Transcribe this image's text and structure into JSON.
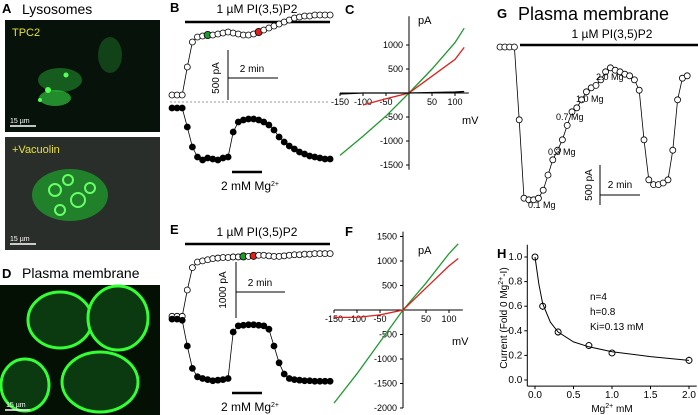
{
  "figure": {
    "A": {
      "label": "A",
      "title": "Lysosomes",
      "top": {
        "caption": "TPC2",
        "scale": "15 µm"
      },
      "bottom": {
        "caption": "+Vacuolin",
        "scale": "15 µm"
      }
    },
    "D": {
      "label": "D",
      "title": "Plasma membrane",
      "scale": "15 µm"
    }
  },
  "chart_data": [
    {
      "type": "trace",
      "label": "B",
      "title": "1 µM PI(3,5)P2",
      "baseline": true,
      "scale_y": {
        "value": 500,
        "label": "500 pA"
      },
      "scale_x": {
        "value": 2,
        "label": "2 min"
      },
      "bar_label": [
        "2 mM Mg",
        "2+"
      ],
      "series": [
        {
          "marker": "open",
          "color": "#000000",
          "values": [
            70,
            70,
            70,
            350,
            600,
            650,
            660,
            670,
            670,
            680,
            690,
            700,
            690,
            680,
            670,
            670,
            680,
            700,
            720,
            740,
            760,
            780,
            800,
            820,
            840,
            850,
            860,
            860,
            870,
            870,
            870,
            870
          ],
          "highlights": [
            {
              "index": 7,
              "color": "#1f9a2f"
            },
            {
              "index": 17,
              "color": "#e0201b"
            }
          ]
        },
        {
          "marker": "filled",
          "color": "#000000",
          "values": [
            -60,
            -60,
            -60,
            -250,
            -450,
            -550,
            -580,
            -560,
            -570,
            -580,
            -560,
            -550,
            -300,
            -200,
            -180,
            -170,
            -170,
            -180,
            -200,
            -230,
            -280,
            -350,
            -400,
            -440,
            -470,
            -500,
            -520,
            -540,
            -550,
            -560,
            -570,
            -570
          ]
        }
      ]
    },
    {
      "type": "iv",
      "label": "C",
      "x_unit": "mV",
      "y_unit": "pA",
      "x": [
        -150,
        -100,
        -50,
        0,
        50,
        100,
        120
      ],
      "series": [
        {
          "color": "#1f9a2f",
          "values": [
            -1300,
            -900,
            -480,
            0,
            500,
            1050,
            1350
          ]
        },
        {
          "color": "#e0201b",
          "values": [
            null,
            -250,
            -120,
            0,
            350,
            700,
            950
          ]
        },
        {
          "color": "#000000",
          "values": [
            -20,
            0,
            0,
            0,
            10,
            20,
            30
          ]
        }
      ],
      "xlim": [
        -150,
        130
      ],
      "ylim": [
        -1600,
        1600
      ],
      "xticks": [
        -150,
        -100,
        -50,
        50,
        100
      ],
      "yticks": [
        -1500,
        -1000,
        -500,
        500,
        1000
      ]
    },
    {
      "type": "trace",
      "label": "E",
      "title": "1 µM PI(3,5)P2",
      "baseline": false,
      "scale_y": {
        "value": 1000,
        "label": "1000 pA"
      },
      "scale_x": {
        "value": 2,
        "label": "2 min"
      },
      "bar_label": [
        "2 mM Mg",
        "2+"
      ],
      "series": [
        {
          "marker": "open",
          "color": "#000000",
          "values": [
            30,
            30,
            30,
            500,
            900,
            1000,
            1020,
            1040,
            1060,
            1070,
            1080,
            1080,
            1090,
            1090,
            1100,
            1100,
            1110,
            1120,
            1120,
            1110,
            1100,
            1100,
            1110,
            1120,
            1130,
            1130,
            1140,
            1140,
            1150,
            1150,
            1150,
            1150
          ],
          "highlights": [
            {
              "index": 14,
              "color": "#1f9a2f"
            },
            {
              "index": 16,
              "color": "#e0201b"
            }
          ]
        },
        {
          "marker": "filled",
          "color": "#000000",
          "values": [
            -20,
            -20,
            -40,
            -500,
            -900,
            -1050,
            -1080,
            -1100,
            -1120,
            -1110,
            -1100,
            -1080,
            -250,
            -140,
            -130,
            -120,
            -120,
            -130,
            -140,
            -200,
            -500,
            -800,
            -1000,
            -1080,
            -1100,
            -1110,
            -1120,
            -1120,
            -1130,
            -1130,
            -1130,
            -1130
          ]
        }
      ]
    },
    {
      "type": "iv",
      "label": "F",
      "x_unit": "mV",
      "y_unit": "pA",
      "x": [
        -150,
        -100,
        -50,
        0,
        50,
        100,
        120
      ],
      "series": [
        {
          "color": "#1f9a2f",
          "values": [
            -1900,
            -1300,
            -650,
            0,
            550,
            1150,
            1350
          ]
        },
        {
          "color": "#e0201b",
          "values": [
            -150,
            -150,
            -100,
            0,
            450,
            900,
            1050
          ]
        }
      ],
      "xlim": [
        -150,
        130
      ],
      "ylim": [
        -2000,
        1600
      ],
      "xticks": [
        -150,
        -100,
        -50,
        50,
        100
      ],
      "yticks": [
        -2000,
        -1500,
        -1000,
        -500,
        500,
        1000,
        1500
      ]
    },
    {
      "type": "trace",
      "label": "G",
      "panel_title": "Plasma membrane",
      "title": "1 µM PI(3,5)P2",
      "baseline": false,
      "scale_y": {
        "value": 500,
        "label": "500 pA"
      },
      "scale_x": {
        "value": 2,
        "label": "2 min"
      },
      "annotations": [
        "0.1 Mg",
        "0.3 Mg",
        "0.7 Mg",
        "1.0 Mg",
        "2.0 Mg"
      ],
      "series": [
        {
          "marker": "open",
          "color": "#000000",
          "values": [
            0,
            0,
            0,
            0,
            -910,
            -1890,
            -1910,
            -1910,
            -1890,
            -1790,
            -1600,
            -1410,
            -1290,
            -1160,
            -980,
            -810,
            -760,
            -660,
            -560,
            -510,
            -480,
            -410,
            -310,
            -260,
            -290,
            -310,
            -340,
            -360,
            -410,
            -540,
            -1160,
            -1660,
            -1720,
            -1720,
            -1700,
            -1660,
            -1290,
            -660,
            -390,
            -360
          ]
        }
      ]
    },
    {
      "type": "scatter",
      "label": "H",
      "xlabel": [
        "Mg",
        "2+",
        " mM"
      ],
      "ylabel": [
        "Current (Fold 0 Mg",
        "2+",
        "-I)"
      ],
      "annotations": [
        "n=4",
        "h=0.8",
        "Ki=0.13 mM"
      ],
      "series": [
        {
          "marker": "open",
          "x": [
            0,
            0.1,
            0.3,
            0.7,
            1.0,
            2.0
          ],
          "values": [
            1.0,
            0.6,
            0.39,
            0.28,
            0.22,
            0.16
          ],
          "errors": [
            0,
            0.03,
            0.03,
            0.02,
            0.02,
            0.03
          ]
        },
        {
          "marker": "line",
          "x": [
            0,
            0.05,
            0.1,
            0.2,
            0.3,
            0.5,
            0.7,
            1.0,
            1.5,
            2.0
          ],
          "values": [
            1.0,
            0.78,
            0.62,
            0.47,
            0.39,
            0.31,
            0.27,
            0.23,
            0.19,
            0.16
          ]
        }
      ],
      "xlim": [
        -0.1,
        2.1
      ],
      "ylim": [
        -0.05,
        1.1
      ],
      "xticks": [
        {
          "value": 0,
          "label": "0.0"
        },
        {
          "value": 0.5,
          "label": "0.5"
        },
        {
          "value": 1,
          "label": "1.0"
        },
        {
          "value": 1.5,
          "label": "1.5"
        },
        {
          "value": 2,
          "label": "2.0"
        }
      ],
      "yticks": [
        {
          "value": 0,
          "label": "0.0"
        },
        {
          "value": 0.2,
          "label": "0.2"
        },
        {
          "value": 0.4,
          "label": "0.4"
        },
        {
          "value": 0.6,
          "label": "0.6"
        },
        {
          "value": 0.8,
          "label": "0.8"
        },
        {
          "value": 1,
          "label": "1.0"
        }
      ]
    }
  ]
}
